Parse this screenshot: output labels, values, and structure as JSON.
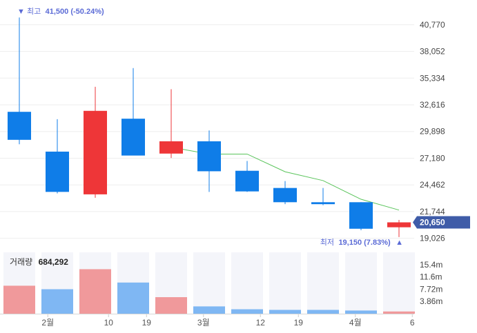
{
  "chart_data": {
    "type": "candlestick",
    "price_axis_ticks": [
      "40,770",
      "38,052",
      "35,334",
      "32,616",
      "29,898",
      "27,180",
      "24,462",
      "21,744",
      "19,026"
    ],
    "price_axis_values": [
      40770,
      38052,
      35334,
      32616,
      29898,
      27180,
      24462,
      21744,
      19026
    ],
    "ylim": [
      18300,
      42300
    ],
    "candles": [
      {
        "open": 31900,
        "high": 41500,
        "low": 28600,
        "close": 29050,
        "direction": "down"
      },
      {
        "open": 27850,
        "high": 31150,
        "low": 23600,
        "close": 23750,
        "direction": "down"
      },
      {
        "open": 23500,
        "high": 34450,
        "low": 23150,
        "close": 32000,
        "direction": "up"
      },
      {
        "open": 31200,
        "high": 36350,
        "low": 27500,
        "close": 27450,
        "direction": "down"
      },
      {
        "open": 27650,
        "high": 34200,
        "low": 27200,
        "close": 28900,
        "direction": "up"
      },
      {
        "open": 28900,
        "high": 30000,
        "low": 23750,
        "close": 25850,
        "direction": "down"
      },
      {
        "open": 25900,
        "high": 26900,
        "low": 23750,
        "close": 23800,
        "direction": "down"
      },
      {
        "open": 24150,
        "high": 24850,
        "low": 22500,
        "close": 22700,
        "direction": "down"
      },
      {
        "open": 22700,
        "high": 24150,
        "low": 22400,
        "close": 22500,
        "direction": "down"
      },
      {
        "open": 22700,
        "high": 22700,
        "low": 19850,
        "close": 20000,
        "direction": "down"
      },
      {
        "open": 20150,
        "high": 20900,
        "low": 19150,
        "close": 20650,
        "direction": "up"
      }
    ],
    "moving_average": [
      null,
      null,
      null,
      null,
      28300,
      27600,
      27600,
      25800,
      24900,
      23000,
      21900
    ],
    "high_annotation": {
      "prefix": "▼ 최고",
      "value": "41,500 (-50.24%)",
      "price": 41500
    },
    "low_annotation": {
      "prefix": "최저",
      "value": "19,150 (7.83%)",
      "suffix": "▲",
      "price": 19150
    },
    "current_price": {
      "label": "20,650",
      "price": 20650
    },
    "volume": {
      "title": "거래량",
      "total": "684,292",
      "axis_ticks": [
        "15.4m",
        "11.6m",
        "7.72m",
        "3.86m"
      ],
      "axis_values": [
        15.4,
        11.6,
        7.72,
        3.86
      ],
      "max": 19.3,
      "values": [
        8.8,
        7.7,
        14.0,
        9.8,
        5.2,
        2.3,
        1.4,
        1.2,
        1.2,
        1.0,
        0.7
      ],
      "directions": [
        "up",
        "down",
        "up",
        "down",
        "up",
        "down",
        "down",
        "down",
        "down",
        "down",
        "up"
      ]
    },
    "x_labels": [
      {
        "index": 0.75,
        "label": "2월"
      },
      {
        "index": 2.35,
        "label": "10"
      },
      {
        "index": 3.35,
        "label": "19"
      },
      {
        "index": 4.85,
        "label": "3월"
      },
      {
        "index": 6.35,
        "label": "12"
      },
      {
        "index": 7.35,
        "label": "19"
      },
      {
        "index": 8.85,
        "label": "4월"
      },
      {
        "index": 10.35,
        "label": "6"
      }
    ],
    "colors": {
      "up": "#ee3638",
      "down": "#0f7de8",
      "up_volume": "#f0999b",
      "down_volume": "#7fb7f3",
      "moving_average": "#59c45a",
      "current_badge": "#3f5ca8",
      "annotation": "#5b6bd6"
    }
  }
}
